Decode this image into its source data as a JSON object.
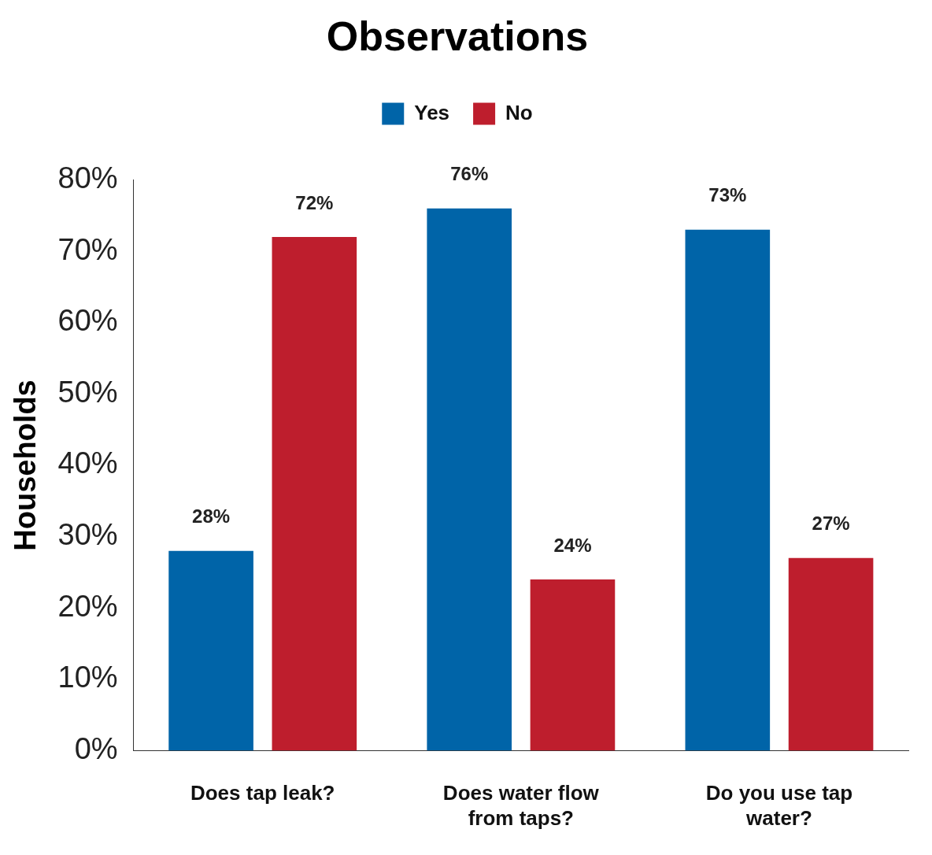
{
  "chart_data": {
    "type": "bar",
    "title": "Observations",
    "ylabel": "Households",
    "categories": [
      "Does tap leak?",
      "Does water flow from taps?",
      "Do you use tap water?"
    ],
    "series": [
      {
        "name": "Yes",
        "color": "#0064a8",
        "values": [
          28,
          76,
          73
        ],
        "value_labels": [
          "28%",
          "76%",
          "73%"
        ]
      },
      {
        "name": "No",
        "color": "#be1e2d",
        "values": [
          72,
          24,
          27
        ],
        "value_labels": [
          "72%",
          "24%",
          "27%"
        ]
      }
    ],
    "ylim": [
      0,
      80
    ],
    "yticks": [
      {
        "value": 0,
        "label": "0%"
      },
      {
        "value": 10,
        "label": "10%"
      },
      {
        "value": 20,
        "label": "20%"
      },
      {
        "value": 30,
        "label": "30%"
      },
      {
        "value": 40,
        "label": "40%"
      },
      {
        "value": 50,
        "label": "50%"
      },
      {
        "value": 60,
        "label": "60%"
      },
      {
        "value": 70,
        "label": "70%"
      },
      {
        "value": 80,
        "label": "80%"
      }
    ],
    "legend": "top",
    "grid": false
  }
}
